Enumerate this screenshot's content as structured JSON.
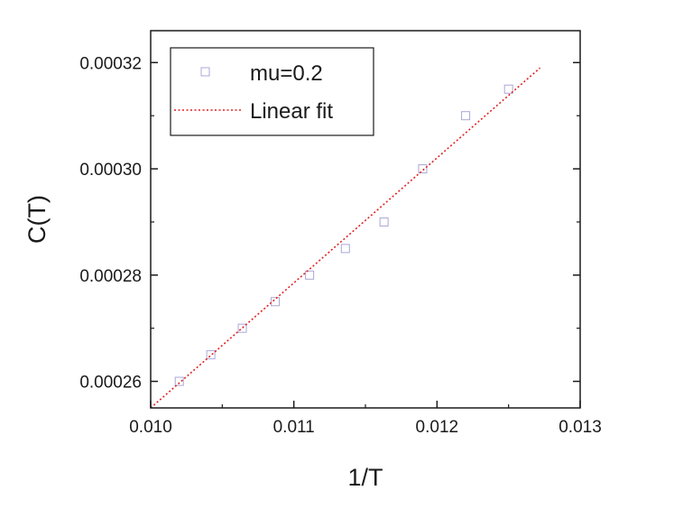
{
  "chart_data": {
    "type": "scatter",
    "title": "",
    "xlabel": "1/T",
    "ylabel": "C(T)",
    "xlim": [
      0.01,
      0.013
    ],
    "ylim": [
      0.000255,
      0.000326
    ],
    "x_ticks": [
      0.01,
      0.011,
      0.012,
      0.013
    ],
    "x_tick_labels": [
      "0.010",
      "0.011",
      "0.012",
      "0.013"
    ],
    "y_ticks": [
      0.00026,
      0.00028,
      0.0003,
      0.00032
    ],
    "y_tick_labels": [
      "0.00026",
      "0.00028",
      "0.00030",
      "0.00032"
    ],
    "grid": false,
    "legend": {
      "position": "top-left",
      "boxed": true
    },
    "series": [
      {
        "name": "mu=0.2",
        "kind": "markers",
        "marker": "open-square",
        "color": "#a8a8d8",
        "x": [
          0.0102,
          0.01042,
          0.01064,
          0.01087,
          0.01111,
          0.01136,
          0.01163,
          0.0119,
          0.0122,
          0.0125
        ],
        "y": [
          0.00026,
          0.000265,
          0.00027,
          0.000275,
          0.00028,
          0.000285,
          0.00029,
          0.0003,
          0.00031,
          0.000315
        ]
      },
      {
        "name": "Linear fit",
        "kind": "line",
        "style": "dotted",
        "color": "#e02020",
        "x": [
          0.01,
          0.01272
        ],
        "y": [
          0.000255,
          0.000319
        ]
      }
    ]
  }
}
